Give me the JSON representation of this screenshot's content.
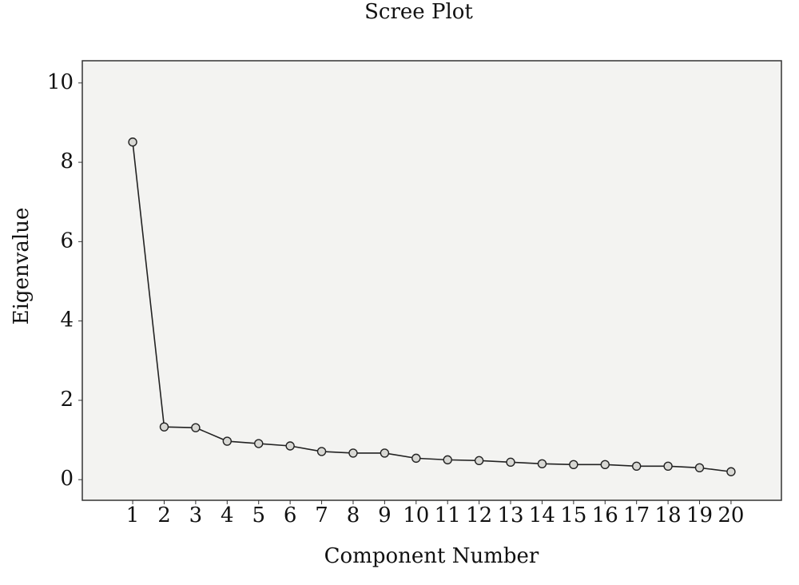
{
  "chart_data": {
    "type": "line",
    "title": "Scree Plot",
    "x_label": "Component Number",
    "y_label": "Eigenvalue",
    "x": [
      1,
      2,
      3,
      4,
      5,
      6,
      7,
      8,
      9,
      10,
      11,
      12,
      13,
      14,
      15,
      16,
      17,
      18,
      19,
      20
    ],
    "series": [
      {
        "color": "#222222",
        "values": [
          8.51,
          1.33,
          1.31,
          0.97,
          0.91,
          0.85,
          0.71,
          0.67,
          0.67,
          0.54,
          0.5,
          0.48,
          0.44,
          0.4,
          0.38,
          0.38,
          0.34,
          0.34,
          0.3,
          0.2
        ]
      }
    ],
    "xlim": [
      -0.6,
      21.6
    ],
    "xticks": [
      1,
      2,
      3,
      4,
      5,
      6,
      7,
      8,
      9,
      10,
      11,
      12,
      13,
      14,
      15,
      16,
      17,
      18,
      19,
      20
    ],
    "ylim": [
      -0.52,
      10.56
    ],
    "yticks": [
      0,
      2,
      4,
      6,
      8,
      10
    ],
    "grid": false
  }
}
